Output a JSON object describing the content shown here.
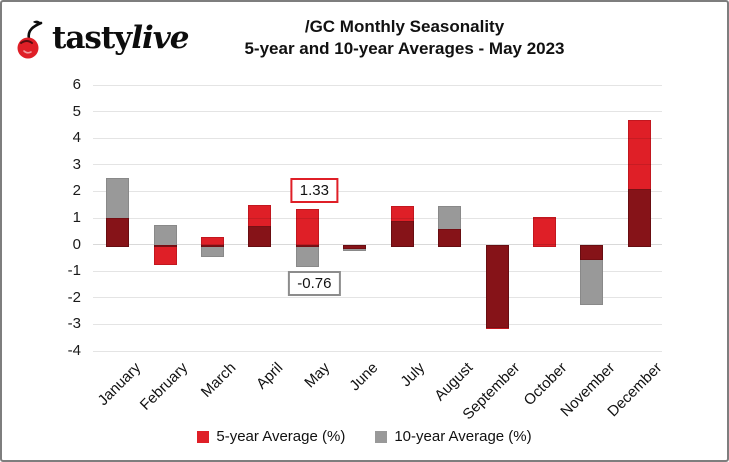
{
  "logo": {
    "brand_part1": "tasty",
    "brand_part2": "live"
  },
  "title": {
    "line1": "/GC Monthly Seasonality",
    "line2": "5-year and 10-year Averages - May 2023"
  },
  "colors": {
    "red": "#df1f27",
    "gray": "#999999",
    "overlap_maroon": "#7b1a1e",
    "gridline": "#e4e4e4",
    "frame_border": "#7e7e7e"
  },
  "chart_data": {
    "type": "bar",
    "categories": [
      "January",
      "February",
      "March",
      "April",
      "May",
      "June",
      "July",
      "August",
      "September",
      "October",
      "November",
      "December"
    ],
    "series": [
      {
        "name": "5-year Average (%)",
        "color": "#df1f27",
        "values": [
          1.0,
          -0.7,
          0.3,
          1.5,
          1.33,
          -0.1,
          1.45,
          0.6,
          -3.1,
          1.05,
          -0.5,
          4.7
        ]
      },
      {
        "name": "10-year Average (%)",
        "color": "#999999",
        "values": [
          2.5,
          0.75,
          -0.4,
          0.7,
          -0.76,
          -0.15,
          0.9,
          1.45,
          -3.05,
          0,
          -2.2,
          2.1
        ]
      }
    ],
    "ylim": [
      -4,
      6
    ],
    "yticks": [
      6,
      5,
      4,
      3,
      2,
      1,
      0,
      -1,
      -2,
      -3,
      -4
    ],
    "grid": true,
    "legend_position": "bottom",
    "bar_style": "overlapped, red series semi-transparent over gray producing dark maroon overlap",
    "annotations": [
      {
        "label": "1.33",
        "month_index": 4,
        "value": 1.33,
        "series": "5-year Average (%)",
        "border_color": "#df1f27",
        "placement": "above"
      },
      {
        "label": "-0.76",
        "month_index": 4,
        "value": -0.76,
        "series": "10-year Average (%)",
        "border_color": "#8c8c8c",
        "placement": "below"
      }
    ]
  }
}
